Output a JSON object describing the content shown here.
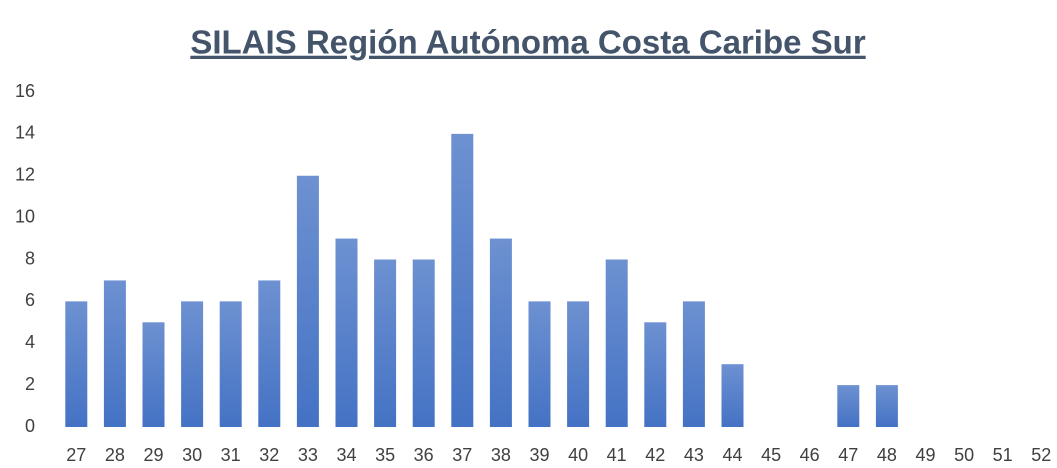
{
  "chart_data": {
    "type": "bar",
    "title": "SILAIS Región Autónoma Costa Caribe Sur",
    "categories": [
      "27",
      "28",
      "29",
      "30",
      "31",
      "32",
      "33",
      "34",
      "35",
      "36",
      "37",
      "38",
      "39",
      "40",
      "41",
      "42",
      "43",
      "44",
      "45",
      "46",
      "47",
      "48",
      "49",
      "50",
      "51",
      "52"
    ],
    "values": [
      6,
      7,
      5,
      6,
      6,
      7,
      12,
      9,
      8,
      8,
      14,
      9,
      6,
      6,
      8,
      5,
      6,
      3,
      0,
      0,
      2,
      2,
      0,
      0,
      0,
      0
    ],
    "color": "#4472c4",
    "ylim": [
      0,
      16
    ],
    "yticks": [
      0,
      2,
      4,
      6,
      8,
      10,
      12,
      14,
      16
    ],
    "grid": false
  }
}
